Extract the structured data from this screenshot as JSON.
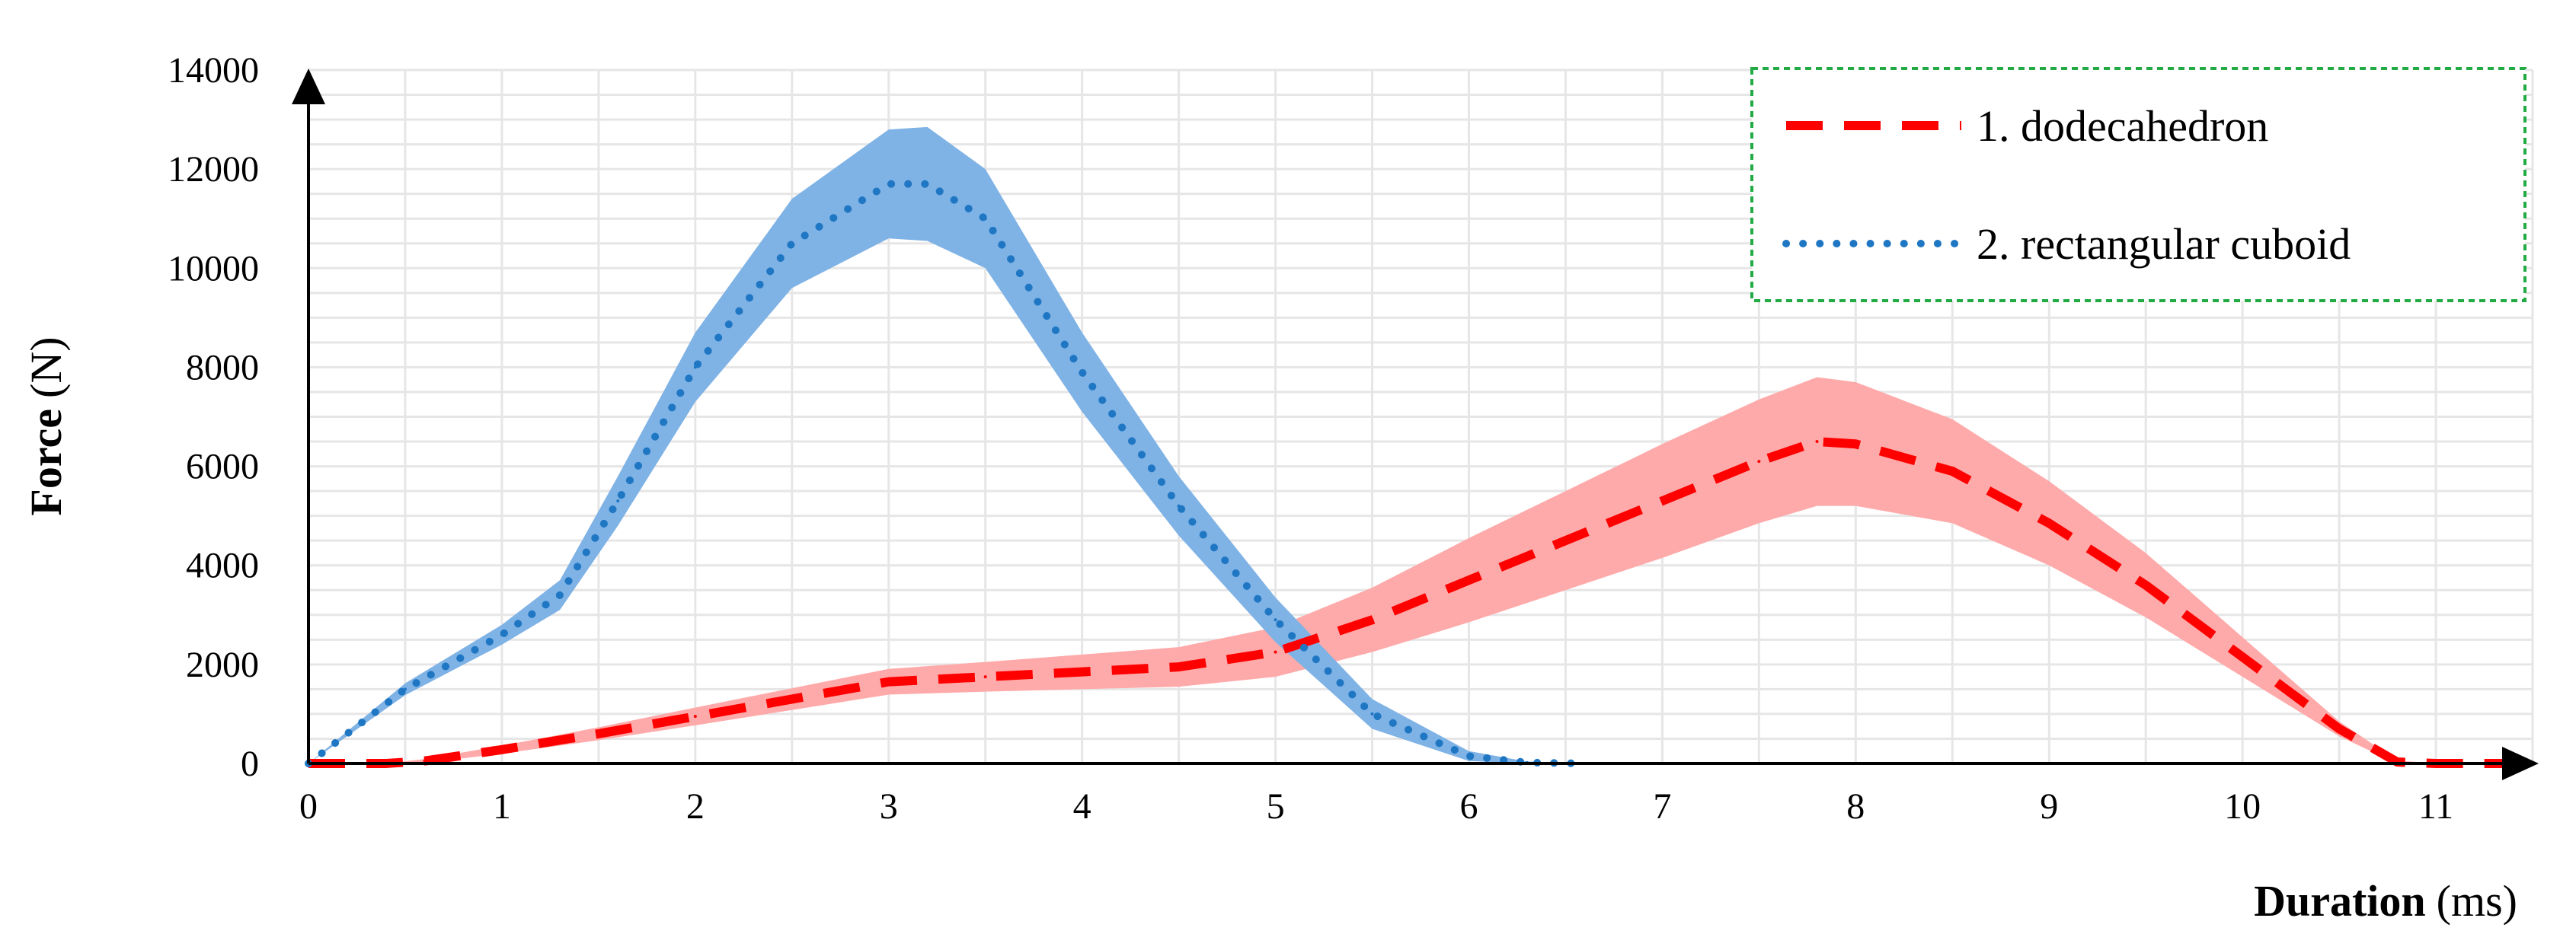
{
  "chart_data": {
    "type": "line",
    "xlabel": {
      "bold": "Duration",
      "unit": "(ms)"
    },
    "ylabel": {
      "bold": "Force",
      "unit": "(N)"
    },
    "xlim": [
      0,
      11.5
    ],
    "ylim": [
      0,
      14000
    ],
    "x_ticks": [
      "0",
      "1",
      "2",
      "3",
      "4",
      "5",
      "6",
      "7",
      "8",
      "9",
      "10",
      "11"
    ],
    "y_ticks": [
      "0",
      "2000",
      "4000",
      "6000",
      "8000",
      "10000",
      "12000",
      "14000"
    ],
    "grid": true,
    "legend_position": "top-right",
    "series": [
      {
        "name": "1. dodecahedron",
        "color": "#ff0000",
        "band_color": "#ffaaaa",
        "line_style": "dashed",
        "x": [
          0,
          0.4,
          0.6,
          1.0,
          1.5,
          2.0,
          2.5,
          3.0,
          3.5,
          4.0,
          4.5,
          5.0,
          5.5,
          6.0,
          6.5,
          7.0,
          7.5,
          7.8,
          8.0,
          8.5,
          9.0,
          9.5,
          10.0,
          10.5,
          10.8,
          11.0,
          11.5
        ],
        "y": [
          0,
          0,
          50,
          280,
          600,
          950,
          1300,
          1650,
          1750,
          1850,
          1950,
          2250,
          2900,
          3700,
          4500,
          5300,
          6100,
          6500,
          6450,
          5900,
          4850,
          3600,
          2150,
          700,
          30,
          0,
          0
        ],
        "band": [
          0,
          0,
          40,
          80,
          130,
          180,
          220,
          260,
          300,
          350,
          400,
          500,
          650,
          850,
          1000,
          1150,
          1250,
          1300,
          1250,
          1050,
          850,
          650,
          400,
          150,
          30,
          0,
          0
        ]
      },
      {
        "name": "2. rectangular cuboid",
        "color": "#1f77c4",
        "band_color": "#7fb2e5",
        "line_style": "dotted",
        "x": [
          0,
          0.5,
          1.0,
          1.3,
          1.6,
          2.0,
          2.5,
          3.0,
          3.2,
          3.5,
          4.0,
          4.5,
          5.0,
          5.5,
          6.0,
          6.3,
          6.6
        ],
        "y": [
          0,
          1500,
          2600,
          3400,
          5300,
          8000,
          10500,
          11700,
          11700,
          11000,
          7900,
          5200,
          2900,
          1000,
          150,
          20,
          0
        ],
        "band": [
          0,
          120,
          200,
          300,
          500,
          700,
          900,
          1100,
          1150,
          1000,
          800,
          600,
          450,
          300,
          100,
          20,
          0
        ]
      }
    ]
  }
}
